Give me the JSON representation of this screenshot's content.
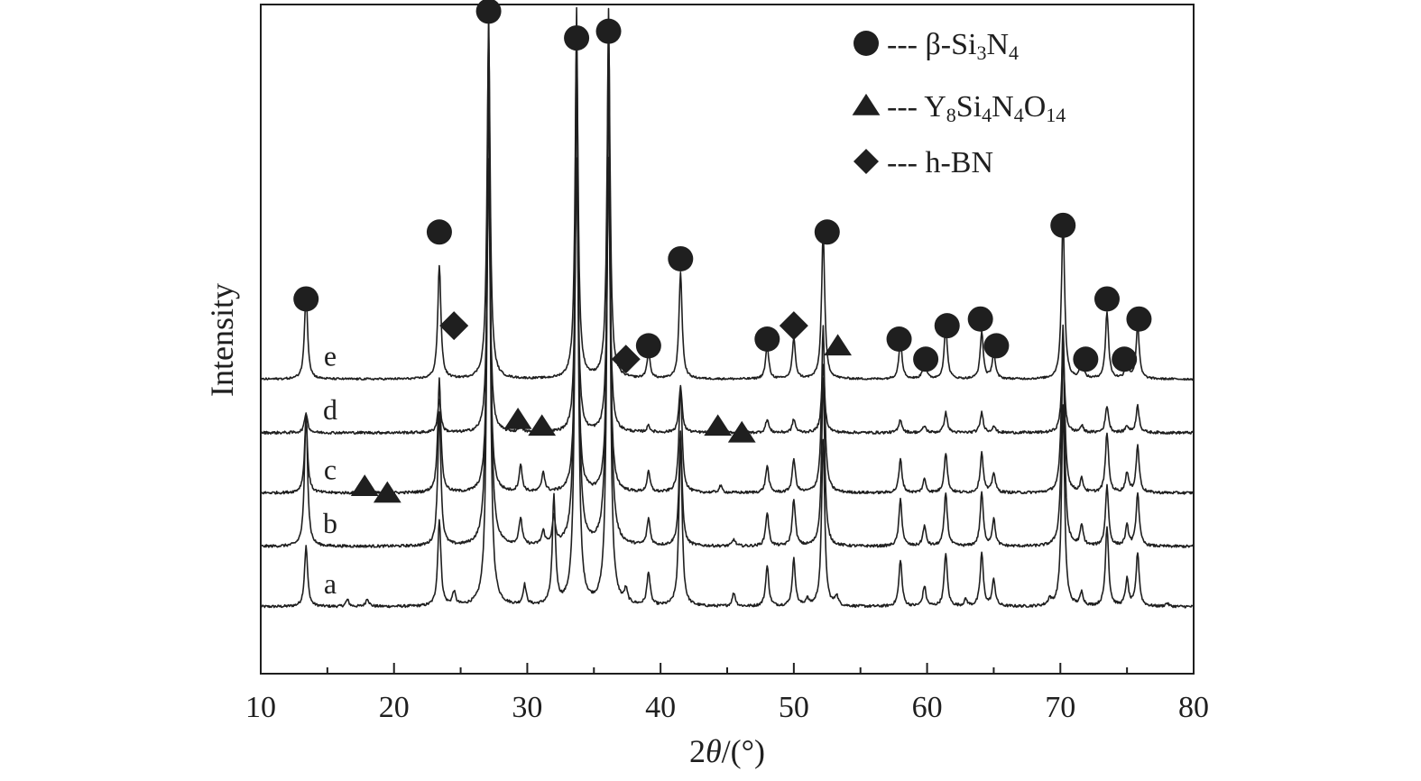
{
  "chart_data": {
    "type": "line",
    "xlabel_prefix": "2",
    "xlabel_theta": "θ",
    "xlabel_suffix": "/(°)",
    "ylabel": "Intensity",
    "xlim": [
      10,
      80
    ],
    "xticks": [
      10,
      20,
      30,
      40,
      50,
      60,
      70,
      80
    ],
    "yticks_shown": false,
    "grid": false,
    "legend_position": "top-right",
    "ink_color": "#1f1f1f",
    "legend": [
      {
        "marker": "circle",
        "dash": "---",
        "base": "β-Si",
        "parts": [
          [
            "3",
            true
          ],
          [
            "N",
            false
          ],
          [
            "4",
            true
          ]
        ]
      },
      {
        "marker": "triangle",
        "dash": "---",
        "base": "Y",
        "parts": [
          [
            "8",
            true
          ],
          [
            "Si",
            false
          ],
          [
            "4",
            true
          ],
          [
            "N",
            false
          ],
          [
            "4",
            true
          ],
          [
            "O",
            false
          ],
          [
            "14",
            true
          ]
        ]
      },
      {
        "marker": "diamond",
        "dash": "---",
        "base": "h-BN",
        "parts": []
      }
    ],
    "peaks_si3n4": [
      13.4,
      23.4,
      27.1,
      33.7,
      36.1,
      39.1,
      41.5,
      48.0,
      52.2,
      58.0,
      59.8,
      61.4,
      64.1,
      65.0,
      70.2,
      71.6,
      73.5,
      75.0,
      75.8
    ],
    "series": [
      {
        "name": "a",
        "baseline": 0.1,
        "noise": 0.004,
        "peaks": [
          [
            13.4,
            0.09
          ],
          [
            16.5,
            0.01
          ],
          [
            18.0,
            0.012
          ],
          [
            23.4,
            0.13
          ],
          [
            24.5,
            0.02
          ],
          [
            27.1,
            0.8
          ],
          [
            29.8,
            0.03
          ],
          [
            32.0,
            0.16
          ],
          [
            33.7,
            0.8
          ],
          [
            36.1,
            0.8
          ],
          [
            37.4,
            0.02
          ],
          [
            39.1,
            0.05
          ],
          [
            41.5,
            0.25
          ],
          [
            45.5,
            0.02
          ],
          [
            48.0,
            0.06
          ],
          [
            50.0,
            0.07
          ],
          [
            51.0,
            0.01
          ],
          [
            52.2,
            0.25
          ],
          [
            53.2,
            0.015
          ],
          [
            58.0,
            0.07
          ],
          [
            59.8,
            0.03
          ],
          [
            61.4,
            0.08
          ],
          [
            62.9,
            0.01
          ],
          [
            64.1,
            0.08
          ],
          [
            65.0,
            0.04
          ],
          [
            69.2,
            0.01
          ],
          [
            70.2,
            0.3
          ],
          [
            71.6,
            0.02
          ],
          [
            73.5,
            0.12
          ],
          [
            75.0,
            0.04
          ],
          [
            75.8,
            0.08
          ],
          [
            78.0,
            0.005
          ]
        ]
      },
      {
        "name": "b",
        "baseline": 0.19,
        "noise": 0.004,
        "peaks": [
          [
            13.4,
            0.2
          ],
          [
            23.4,
            0.2
          ],
          [
            27.1,
            0.8
          ],
          [
            29.5,
            0.04
          ],
          [
            31.2,
            0.02
          ],
          [
            32.0,
            0.04
          ],
          [
            33.7,
            0.8
          ],
          [
            36.1,
            0.8
          ],
          [
            39.1,
            0.04
          ],
          [
            41.5,
            0.17
          ],
          [
            45.5,
            0.01
          ],
          [
            48.0,
            0.05
          ],
          [
            50.0,
            0.07
          ],
          [
            52.2,
            0.25
          ],
          [
            58.0,
            0.07
          ],
          [
            59.8,
            0.03
          ],
          [
            61.4,
            0.08
          ],
          [
            64.1,
            0.08
          ],
          [
            65.0,
            0.04
          ],
          [
            70.2,
            0.3
          ],
          [
            71.6,
            0.03
          ],
          [
            73.5,
            0.09
          ],
          [
            75.0,
            0.03
          ],
          [
            75.8,
            0.08
          ]
        ]
      },
      {
        "name": "c",
        "baseline": 0.27,
        "noise": 0.004,
        "peaks": [
          [
            13.4,
            0.11
          ],
          [
            23.4,
            0.17
          ],
          [
            27.1,
            0.5
          ],
          [
            29.5,
            0.04
          ],
          [
            31.2,
            0.03
          ],
          [
            33.7,
            0.5
          ],
          [
            36.1,
            0.5
          ],
          [
            39.1,
            0.03
          ],
          [
            41.5,
            0.16
          ],
          [
            44.5,
            0.01
          ],
          [
            48.0,
            0.04
          ],
          [
            50.0,
            0.05
          ],
          [
            52.2,
            0.25
          ],
          [
            58.0,
            0.05
          ],
          [
            59.8,
            0.02
          ],
          [
            61.4,
            0.06
          ],
          [
            64.1,
            0.06
          ],
          [
            65.0,
            0.03
          ],
          [
            70.2,
            0.25
          ],
          [
            71.6,
            0.02
          ],
          [
            73.5,
            0.09
          ],
          [
            75.0,
            0.03
          ],
          [
            75.8,
            0.07
          ]
        ]
      },
      {
        "name": "d",
        "baseline": 0.36,
        "noise": 0.004,
        "peaks": [
          [
            13.4,
            0.03
          ],
          [
            23.4,
            0.05
          ],
          [
            27.1,
            0.4
          ],
          [
            29.5,
            0.01
          ],
          [
            31.2,
            0.008
          ],
          [
            33.7,
            0.4
          ],
          [
            36.1,
            0.4
          ],
          [
            39.1,
            0.01
          ],
          [
            41.5,
            0.07
          ],
          [
            44.5,
            0.008
          ],
          [
            48.0,
            0.02
          ],
          [
            50.0,
            0.02
          ],
          [
            52.2,
            0.1
          ],
          [
            58.0,
            0.02
          ],
          [
            59.8,
            0.01
          ],
          [
            61.4,
            0.03
          ],
          [
            64.1,
            0.03
          ],
          [
            65.0,
            0.01
          ],
          [
            70.2,
            0.12
          ],
          [
            71.6,
            0.01
          ],
          [
            73.5,
            0.04
          ],
          [
            75.0,
            0.01
          ],
          [
            75.8,
            0.04
          ]
        ]
      },
      {
        "name": "e",
        "baseline": 0.44,
        "noise": 0.003,
        "peaks": [
          [
            13.4,
            0.13
          ],
          [
            23.4,
            0.17
          ],
          [
            27.1,
            0.52
          ],
          [
            33.7,
            0.5
          ],
          [
            36.1,
            0.52
          ],
          [
            39.1,
            0.04
          ],
          [
            41.5,
            0.16
          ],
          [
            48.0,
            0.05
          ],
          [
            50.0,
            0.06
          ],
          [
            52.2,
            0.22
          ],
          [
            58.0,
            0.06
          ],
          [
            59.8,
            0.03
          ],
          [
            61.4,
            0.08
          ],
          [
            64.1,
            0.07
          ],
          [
            65.0,
            0.04
          ],
          [
            70.2,
            0.24
          ],
          [
            71.6,
            0.03
          ],
          [
            73.5,
            0.1
          ],
          [
            75.0,
            0.03
          ],
          [
            75.8,
            0.08
          ]
        ]
      }
    ],
    "markers": [
      {
        "shape": "circle",
        "x": 13.4,
        "y": 0.56
      },
      {
        "shape": "circle",
        "x": 23.4,
        "y": 0.66
      },
      {
        "shape": "circle",
        "x": 27.1,
        "y": 0.99
      },
      {
        "shape": "circle",
        "x": 33.7,
        "y": 0.95
      },
      {
        "shape": "circle",
        "x": 36.1,
        "y": 0.96
      },
      {
        "shape": "circle",
        "x": 39.1,
        "y": 0.49
      },
      {
        "shape": "circle",
        "x": 41.5,
        "y": 0.62
      },
      {
        "shape": "circle",
        "x": 48.0,
        "y": 0.5
      },
      {
        "shape": "circle",
        "x": 52.5,
        "y": 0.66
      },
      {
        "shape": "circle",
        "x": 57.9,
        "y": 0.5
      },
      {
        "shape": "circle",
        "x": 59.9,
        "y": 0.47
      },
      {
        "shape": "circle",
        "x": 61.5,
        "y": 0.52
      },
      {
        "shape": "circle",
        "x": 64.0,
        "y": 0.53
      },
      {
        "shape": "circle",
        "x": 65.2,
        "y": 0.49
      },
      {
        "shape": "circle",
        "x": 70.2,
        "y": 0.67
      },
      {
        "shape": "circle",
        "x": 71.9,
        "y": 0.47
      },
      {
        "shape": "circle",
        "x": 73.5,
        "y": 0.56
      },
      {
        "shape": "circle",
        "x": 74.8,
        "y": 0.47
      },
      {
        "shape": "circle",
        "x": 75.9,
        "y": 0.53
      },
      {
        "shape": "diamond",
        "x": 24.5,
        "y": 0.52
      },
      {
        "shape": "diamond",
        "x": 37.4,
        "y": 0.47
      },
      {
        "shape": "diamond",
        "x": 50.0,
        "y": 0.52
      },
      {
        "shape": "triangle",
        "x": 53.3,
        "y": 0.49
      },
      {
        "shape": "triangle",
        "x": 29.3,
        "y": 0.38
      },
      {
        "shape": "triangle",
        "x": 31.1,
        "y": 0.37
      },
      {
        "shape": "triangle",
        "x": 44.3,
        "y": 0.37
      },
      {
        "shape": "triangle",
        "x": 46.1,
        "y": 0.36
      },
      {
        "shape": "triangle",
        "x": 17.8,
        "y": 0.28
      },
      {
        "shape": "triangle",
        "x": 19.5,
        "y": 0.27
      }
    ]
  }
}
